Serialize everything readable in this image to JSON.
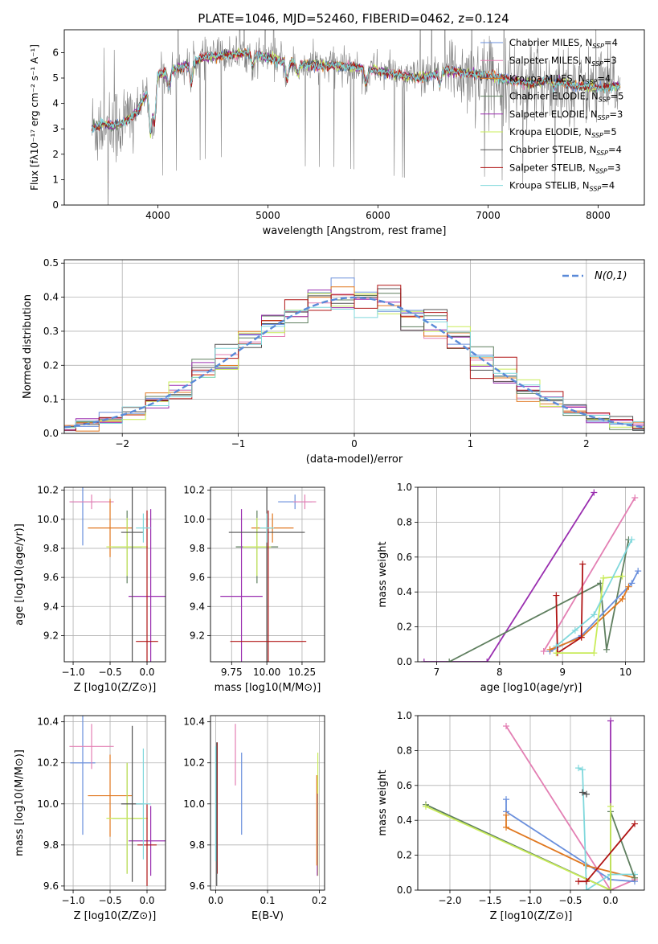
{
  "title": "PLATE=1046, MJD=52460, FIBERID=0462, z=0.124",
  "colors": {
    "Chabrier MILES": "#6a8fdc",
    "Salpeter MILES": "#e37fb3",
    "Kroupa MILES": "#e07820",
    "Chabrier ELODIE": "#5f7f5f",
    "Salpeter ELODIE": "#9a2fb0",
    "Kroupa ELODIE": "#c9ec5a",
    "Chabrier STELIB": "#505050",
    "Salpeter STELIB": "#b01515",
    "Kroupa STELIB": "#80d8dc",
    "data": "#808080",
    "gauss": "#5a8ad8"
  },
  "chart_data": [
    {
      "id": "spectrum",
      "type": "line",
      "xlabel": "wavelength [Angstrom, rest frame]",
      "ylabel": "Flux [fλ10⁻¹⁷ erg cm⁻² s⁻¹ A⁻¹]",
      "xlim": [
        3150,
        8420
      ],
      "ylim": [
        0,
        6.9
      ],
      "xticks": [
        4000,
        5000,
        6000,
        7000,
        8000
      ],
      "yticks": [
        0,
        1,
        2,
        3,
        4,
        5,
        6
      ],
      "legend_position": "top-right",
      "legend": [
        {
          "label": "Chabrier MILES, N",
          "sub": "SSP",
          "tail": "=4"
        },
        {
          "label": "Salpeter MILES, N",
          "sub": "SSP",
          "tail": "=3"
        },
        {
          "label": "Kroupa MILES, N",
          "sub": "SSP",
          "tail": "=4"
        },
        {
          "label": "Chabrier ELODIE, N",
          "sub": "SSP",
          "tail": "=5"
        },
        {
          "label": "Salpeter ELODIE, N",
          "sub": "SSP",
          "tail": "=3"
        },
        {
          "label": "Kroupa ELODIE, N",
          "sub": "SSP",
          "tail": "=5"
        },
        {
          "label": "Chabrier STELIB, N",
          "sub": "SSP",
          "tail": "=4"
        },
        {
          "label": "Salpeter STELIB, N",
          "sub": "SSP",
          "tail": "=3"
        },
        {
          "label": "Kroupa STELIB, N",
          "sub": "SSP",
          "tail": "=4"
        }
      ],
      "continuum": {
        "x": [
          3400,
          3500,
          3600,
          3700,
          3800,
          3900,
          4000,
          4200,
          4400,
          4600,
          4800,
          5000,
          5200,
          5400,
          5600,
          5800,
          6000,
          6200,
          6400,
          6600,
          6800,
          7000,
          7200,
          7400,
          7600,
          7800,
          8000,
          8200
        ],
        "y": [
          3.0,
          3.2,
          3.1,
          3.3,
          3.6,
          4.4,
          5.1,
          5.4,
          5.8,
          5.9,
          6.0,
          5.8,
          5.6,
          5.5,
          5.5,
          5.4,
          5.3,
          5.1,
          5.0,
          5.3,
          5.2,
          5.1,
          4.9,
          4.8,
          4.9,
          4.7,
          4.6,
          4.7
        ]
      }
    },
    {
      "id": "residuals",
      "type": "bar",
      "xlabel": "(data-model)/error",
      "ylabel": "Normed distribution",
      "xlim": [
        -2.5,
        2.5
      ],
      "ylim": [
        0,
        0.51
      ],
      "xticks": [
        -2,
        -1,
        0,
        1,
        2
      ],
      "yticks": [
        0.0,
        0.1,
        0.2,
        0.3,
        0.4,
        0.5
      ],
      "legend_position": "top-right",
      "gauss_label": "N(0,1)",
      "bin_width": 0.2,
      "bins_start": -2.6
    },
    {
      "id": "age-vs-Z",
      "type": "scatter",
      "xlabel": "Z [log10(Z/Z⊙)]",
      "ylabel": "age [log10(age/yr)]",
      "xlim": [
        -1.12,
        0.25
      ],
      "ylim": [
        9.02,
        10.22
      ],
      "xticks": [
        -1.0,
        -0.5,
        0.0
      ],
      "yticks": [
        9.2,
        9.4,
        9.6,
        9.8,
        10.0,
        10.2
      ],
      "points": [
        {
          "c": "Chabrier MILES",
          "x": -0.87,
          "y": 10.12,
          "xe": 0.17,
          "ye": 0.3
        },
        {
          "c": "Salpeter MILES",
          "x": -0.75,
          "y": 10.12,
          "xe": 0.3,
          "ye": 0.05
        },
        {
          "c": "Kroupa MILES",
          "x": -0.5,
          "y": 9.94,
          "xe": 0.3,
          "ye": 0.2
        },
        {
          "c": "Chabrier ELODIE",
          "x": -0.27,
          "y": 9.81,
          "xe": 0.2,
          "ye": 0.25
        },
        {
          "c": "Kroupa ELODIE",
          "x": -0.27,
          "y": 9.81,
          "xe": 0.28,
          "ye": 0.2
        },
        {
          "c": "Salpeter ELODIE",
          "x": 0.05,
          "y": 9.47,
          "xe": 0.3,
          "ye": 0.6
        },
        {
          "c": "Chabrier STELIB",
          "x": -0.2,
          "y": 9.91,
          "xe": 0.15,
          "ye": 0.9
        },
        {
          "c": "Salpeter STELIB",
          "x": 0.0,
          "y": 9.16,
          "xe": 0.15,
          "ye": 0.9
        },
        {
          "c": "Kroupa STELIB",
          "x": -0.05,
          "y": 9.94,
          "xe": 0.1,
          "ye": 0.1
        }
      ]
    },
    {
      "id": "age-vs-mass",
      "type": "scatter",
      "xlabel": "mass [log10(M/M⊙)]",
      "ylabel": "",
      "xlim": [
        9.6,
        10.41
      ],
      "ylim": [
        9.02,
        10.22
      ],
      "xticks": [
        9.75,
        10.0,
        10.25
      ],
      "yticks": [
        9.2,
        9.4,
        9.6,
        9.8,
        10.0,
        10.2
      ],
      "points": [
        {
          "c": "Chabrier MILES",
          "x": 10.2,
          "y": 10.12,
          "xe": 0.12,
          "ye": 0.05
        },
        {
          "c": "Salpeter MILES",
          "x": 10.27,
          "y": 10.12,
          "xe": 0.08,
          "ye": 0.05
        },
        {
          "c": "Kroupa MILES",
          "x": 10.04,
          "y": 9.94,
          "xe": 0.15,
          "ye": 0.1
        },
        {
          "c": "Chabrier ELODIE",
          "x": 9.93,
          "y": 9.81,
          "xe": 0.15,
          "ye": 0.25
        },
        {
          "c": "Kroupa ELODIE",
          "x": 9.93,
          "y": 9.81,
          "xe": 0.1,
          "ye": 0.2
        },
        {
          "c": "Salpeter ELODIE",
          "x": 9.82,
          "y": 9.47,
          "xe": 0.15,
          "ye": 0.6
        },
        {
          "c": "Chabrier STELIB",
          "x": 10.0,
          "y": 9.91,
          "xe": 0.27,
          "ye": 0.9
        },
        {
          "c": "Salpeter STELIB",
          "x": 10.01,
          "y": 9.16,
          "xe": 0.27,
          "ye": 0.9
        },
        {
          "c": "Kroupa STELIB",
          "x": 10.0,
          "y": 9.94,
          "xe": 0.05,
          "ye": 0.1
        }
      ]
    },
    {
      "id": "weight-vs-age",
      "type": "line",
      "xlabel": "age  [log10(age/yr)]",
      "ylabel": "mass weight",
      "xlim": [
        6.7,
        10.3
      ],
      "ylim": [
        0,
        1.0
      ],
      "xticks": [
        7,
        8,
        9,
        10
      ],
      "yticks": [
        0.0,
        0.2,
        0.4,
        0.6,
        0.8,
        1.0
      ],
      "series": [
        {
          "c": "Salpeter ELODIE",
          "x": [
            6.8,
            7.8,
            9.5
          ],
          "y": [
            0.0,
            0.0,
            0.97
          ]
        },
        {
          "c": "Salpeter MILES",
          "x": [
            8.7,
            10.15
          ],
          "y": [
            0.06,
            0.94
          ]
        },
        {
          "c": "Chabrier ELODIE",
          "x": [
            7.2,
            9.6,
            9.7,
            10.05
          ],
          "y": [
            0.0,
            0.45,
            0.07,
            0.7
          ]
        },
        {
          "c": "Chabrier MILES",
          "x": [
            8.8,
            9.3,
            10.1,
            10.2
          ],
          "y": [
            0.06,
            0.15,
            0.45,
            0.52
          ]
        },
        {
          "c": "Kroupa MILES",
          "x": [
            8.8,
            9.3,
            9.95,
            10.05
          ],
          "y": [
            0.07,
            0.14,
            0.36,
            0.43
          ]
        },
        {
          "c": "Salpeter STELIB",
          "x": [
            8.9,
            8.92,
            9.3,
            9.32
          ],
          "y": [
            0.38,
            0.05,
            0.14,
            0.56
          ]
        },
        {
          "c": "Kroupa ELODIE",
          "x": [
            8.9,
            9.5,
            9.65,
            9.95
          ],
          "y": [
            0.05,
            0.05,
            0.48,
            0.49
          ]
        },
        {
          "c": "Kroupa STELIB",
          "x": [
            8.9,
            9.2,
            9.5,
            10.1
          ],
          "y": [
            0.09,
            0.18,
            0.27,
            0.7
          ]
        }
      ]
    },
    {
      "id": "mass-vs-Z",
      "type": "scatter",
      "xlabel": "Z [log10(Z/Z⊙)]",
      "ylabel": "mass [log10(M/M⊙)]",
      "xlim": [
        -1.12,
        0.25
      ],
      "ylim": [
        9.58,
        10.43
      ],
      "xticks": [
        -1.0,
        -0.5,
        0.0
      ],
      "yticks": [
        9.6,
        9.8,
        10.0,
        10.2,
        10.4
      ],
      "points": [
        {
          "c": "Chabrier MILES",
          "x": -0.87,
          "y": 10.2,
          "xe": 0.17,
          "ye": 0.35
        },
        {
          "c": "Salpeter MILES",
          "x": -0.75,
          "y": 10.28,
          "xe": 0.3,
          "ye": 0.11
        },
        {
          "c": "Kroupa MILES",
          "x": -0.5,
          "y": 10.04,
          "xe": 0.3,
          "ye": 0.2
        },
        {
          "c": "Chabrier ELODIE",
          "x": -0.27,
          "y": 9.93,
          "xe": 0.2,
          "ye": 0.27
        },
        {
          "c": "Kroupa ELODIE",
          "x": -0.27,
          "y": 9.93,
          "xe": 0.28,
          "ye": 0.27
        },
        {
          "c": "Salpeter ELODIE",
          "x": 0.05,
          "y": 9.82,
          "xe": 0.3,
          "ye": 0.17
        },
        {
          "c": "Chabrier STELIB",
          "x": -0.2,
          "y": 10.0,
          "xe": 0.15,
          "ye": 0.38
        },
        {
          "c": "Salpeter STELIB",
          "x": 0.0,
          "y": 9.8,
          "xe": 0.13,
          "ye": 0.2
        },
        {
          "c": "Kroupa STELIB",
          "x": -0.05,
          "y": 10.0,
          "xe": 0.1,
          "ye": 0.27
        }
      ]
    },
    {
      "id": "mass-vs-ebv",
      "type": "scatter",
      "xlabel": "E(B-V)",
      "ylabel": "",
      "xlim": [
        -0.01,
        0.21
      ],
      "ylim": [
        9.58,
        10.43
      ],
      "xticks": [
        0.0,
        0.1,
        0.2
      ],
      "yticks": [
        9.6,
        9.8,
        10.0,
        10.2,
        10.4
      ],
      "points": [
        {
          "c": "Chabrier MILES",
          "x": 0.05,
          "y": 10.05,
          "xe": 0,
          "ye": 0.2
        },
        {
          "c": "Salpeter MILES",
          "x": 0.038,
          "y": 10.24,
          "xe": 0,
          "ye": 0.15
        },
        {
          "c": "Salpeter STELIB",
          "x": 0.003,
          "y": 9.98,
          "xe": 0,
          "ye": 0.32
        },
        {
          "c": "Chabrier STELIB",
          "x": 0.002,
          "y": 9.95,
          "xe": 0,
          "ye": 0.35
        },
        {
          "c": "Kroupa STELIB",
          "x": 0.0,
          "y": 10.0,
          "xe": 0,
          "ye": 0.28
        },
        {
          "c": "Kroupa ELODIE",
          "x": 0.197,
          "y": 9.95,
          "xe": 0,
          "ye": 0.3
        },
        {
          "c": "Salpeter ELODIE",
          "x": 0.196,
          "y": 9.85,
          "xe": 0,
          "ye": 0.2
        },
        {
          "c": "Kroupa MILES",
          "x": 0.195,
          "y": 9.92,
          "xe": 0,
          "ye": 0.22
        }
      ]
    },
    {
      "id": "weight-vs-Z",
      "type": "line",
      "xlabel": "Z [log10(Z/Z⊙)]",
      "ylabel": "mass weight",
      "xlim": [
        -2.4,
        0.42
      ],
      "ylim": [
        0,
        1.0
      ],
      "xticks": [
        -2.0,
        -1.5,
        -1.0,
        -0.5,
        0.0
      ],
      "yticks": [
        0.0,
        0.2,
        0.4,
        0.6,
        0.8,
        1.0
      ],
      "series": [
        {
          "c": "Salpeter MILES",
          "x": [
            -1.3,
            0.0,
            0.3
          ],
          "y": [
            0.94,
            0.0,
            0.06
          ]
        },
        {
          "c": "Chabrier MILES",
          "x": [
            -1.3,
            -1.3,
            0.0,
            0.3
          ],
          "y": [
            0.52,
            0.45,
            0.06,
            0.05
          ]
        },
        {
          "c": "Kroupa MILES",
          "x": [
            -1.3,
            -1.3,
            -0.3,
            0.3
          ],
          "y": [
            0.43,
            0.36,
            0.14,
            0.07
          ]
        },
        {
          "c": "Salpeter ELODIE",
          "x": [
            0.0,
            0.0
          ],
          "y": [
            0.97,
            0.0
          ]
        },
        {
          "c": "Kroupa STELIB",
          "x": [
            -0.4,
            -0.35,
            -0.3,
            0.0,
            0.3
          ],
          "y": [
            0.7,
            0.69,
            0.0,
            0.09,
            0.09
          ]
        },
        {
          "c": "Chabrier ELODIE",
          "x": [
            -2.3,
            0.0,
            0.0,
            0.3
          ],
          "y": [
            0.49,
            0.0,
            0.45,
            0.07
          ]
        },
        {
          "c": "Kroupa ELODIE",
          "x": [
            -2.3,
            0.0,
            0.0
          ],
          "y": [
            0.48,
            0.0,
            0.48
          ]
        },
        {
          "c": "Salpeter STELIB",
          "x": [
            -0.4,
            -0.3,
            0.3
          ],
          "y": [
            0.05,
            0.05,
            0.38
          ]
        },
        {
          "c": "Chabrier STELIB",
          "x": [
            -0.35,
            -0.3
          ],
          "y": [
            0.56,
            0.55
          ]
        }
      ]
    }
  ]
}
